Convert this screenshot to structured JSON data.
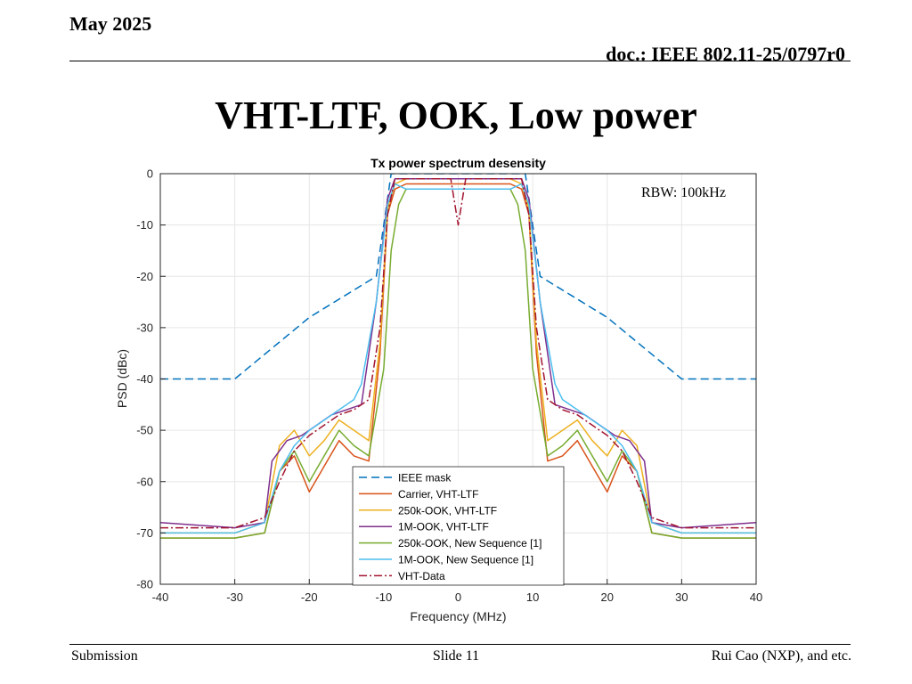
{
  "header": {
    "date": "May 2025",
    "doc": "doc.: IEEE 802.11-25/0797r0"
  },
  "slide_title": "VHT-LTF, OOK, Low power",
  "footer": {
    "left": "Submission",
    "center": "Slide 11",
    "right": "Rui Cao (NXP), and etc."
  },
  "chart_data": {
    "type": "line",
    "title": "Tx power spectrum desensity",
    "xlabel": "Frequency (MHz)",
    "ylabel": "PSD (dBc)",
    "xlim": [
      -40,
      40
    ],
    "ylim": [
      -80,
      0
    ],
    "xticks": [
      -40,
      -30,
      -20,
      -10,
      0,
      10,
      20,
      30,
      40
    ],
    "yticks": [
      0,
      -10,
      -20,
      -30,
      -40,
      -50,
      -60,
      -70,
      -80
    ],
    "grid": true,
    "annotation": "RBW: 100kHz",
    "legend_position": "bottom-center",
    "series": [
      {
        "name": "IEEE mask",
        "color": "#0072BD",
        "style": "dashed",
        "x": [
          -40,
          -30,
          -20,
          -11,
          -9,
          9,
          11,
          20,
          30,
          40
        ],
        "y": [
          -40,
          -40,
          -28,
          -20,
          0,
          0,
          -20,
          -28,
          -40,
          -40
        ]
      },
      {
        "name": "Carrier, VHT-LTF",
        "color": "#D95319",
        "style": "solid",
        "x": [
          -40,
          -30,
          -26,
          -24,
          -22,
          -20,
          -18,
          -16,
          -14,
          -12,
          -10.5,
          -9.5,
          -8.5,
          -7,
          0,
          7,
          8.5,
          9.5,
          10.5,
          12,
          14,
          16,
          18,
          20,
          22,
          24,
          26,
          30,
          40
        ],
        "y": [
          -71,
          -71,
          -70,
          -58,
          -55,
          -62,
          -57,
          -52,
          -55,
          -56,
          -35,
          -8,
          -3,
          -2,
          -2,
          -2,
          -3,
          -8,
          -35,
          -56,
          -55,
          -52,
          -57,
          -62,
          -55,
          -58,
          -70,
          -71,
          -71
        ]
      },
      {
        "name": "250k-OOK, VHT-LTF",
        "color": "#EDB120",
        "style": "solid",
        "x": [
          -40,
          -30,
          -26,
          -24,
          -22,
          -20,
          -18,
          -16,
          -14,
          -12,
          -10.5,
          -9.5,
          -8.5,
          -7,
          0,
          7,
          8.5,
          9.5,
          10.5,
          12,
          14,
          16,
          18,
          20,
          22,
          24,
          26,
          30,
          40
        ],
        "y": [
          -70,
          -70,
          -68,
          -53,
          -50,
          -55,
          -52,
          -48,
          -50,
          -52,
          -33,
          -7,
          -2,
          -1,
          -1,
          -1,
          -2,
          -7,
          -33,
          -52,
          -50,
          -48,
          -52,
          -55,
          -50,
          -53,
          -68,
          -70,
          -70
        ]
      },
      {
        "name": "1M-OOK, VHT-LTF",
        "color": "#7E2F8E",
        "style": "solid",
        "x": [
          -40,
          -30,
          -26,
          -25,
          -23,
          -21,
          -19,
          -17,
          -15,
          -13,
          -11,
          -9.5,
          -8.5,
          -7,
          0,
          7,
          8.5,
          9.5,
          11,
          13,
          15,
          17,
          19,
          21,
          23,
          25,
          26,
          30,
          40
        ],
        "y": [
          -68,
          -69,
          -68,
          -56,
          -52,
          -51,
          -49,
          -47,
          -46,
          -45,
          -25,
          -5,
          -1,
          -1,
          -1,
          -1,
          -1,
          -5,
          -25,
          -45,
          -46,
          -47,
          -49,
          -51,
          -52,
          -56,
          -68,
          -69,
          -68
        ]
      },
      {
        "name": "250k-OOK, New Sequence [1]",
        "color": "#77AC30",
        "style": "solid",
        "x": [
          -40,
          -30,
          -26,
          -24,
          -22,
          -20,
          -18,
          -16,
          -14,
          -12,
          -10,
          -9,
          -8,
          -7,
          0,
          7,
          8,
          9,
          10,
          12,
          14,
          16,
          18,
          20,
          22,
          24,
          26,
          30,
          40
        ],
        "y": [
          -71,
          -71,
          -70,
          -58,
          -54,
          -60,
          -55,
          -50,
          -53,
          -55,
          -38,
          -15,
          -6,
          -3,
          -3,
          -3,
          -6,
          -15,
          -38,
          -55,
          -53,
          -50,
          -55,
          -60,
          -54,
          -58,
          -70,
          -71,
          -71
        ]
      },
      {
        "name": "1M-OOK, New Sequence [1]",
        "color": "#4DBEEE",
        "style": "solid",
        "x": [
          -40,
          -30,
          -26,
          -24,
          -22,
          -20,
          -18,
          -16,
          -14,
          -13,
          -11,
          -9.5,
          -8.5,
          -7,
          0,
          7,
          8.5,
          9.5,
          11,
          13,
          14,
          16,
          18,
          20,
          22,
          24,
          26,
          30,
          40
        ],
        "y": [
          -70,
          -70,
          -68,
          -58,
          -53,
          -50,
          -48,
          -46,
          -44,
          -41,
          -25,
          -6,
          -2,
          -3,
          -3,
          -3,
          -2,
          -6,
          -25,
          -41,
          -44,
          -46,
          -48,
          -50,
          -53,
          -58,
          -68,
          -70,
          -70
        ]
      },
      {
        "name": "VHT-Data",
        "color": "#A2142F",
        "style": "dashdot",
        "x": [
          -40,
          -30,
          -26,
          -24,
          -22,
          -20,
          -18,
          -16,
          -14,
          -12,
          -10.5,
          -9.5,
          -8.5,
          -7,
          -1,
          0,
          1,
          7,
          8.5,
          9.5,
          10.5,
          12,
          14,
          16,
          18,
          20,
          22,
          24,
          26,
          30,
          40
        ],
        "y": [
          -69,
          -69,
          -67,
          -60,
          -54,
          -51,
          -49,
          -47,
          -46,
          -44,
          -30,
          -8,
          -1,
          -1,
          -1,
          -10,
          -1,
          -1,
          -1,
          -8,
          -30,
          -44,
          -46,
          -47,
          -49,
          -51,
          -54,
          -60,
          -67,
          -69,
          -69
        ]
      }
    ]
  }
}
